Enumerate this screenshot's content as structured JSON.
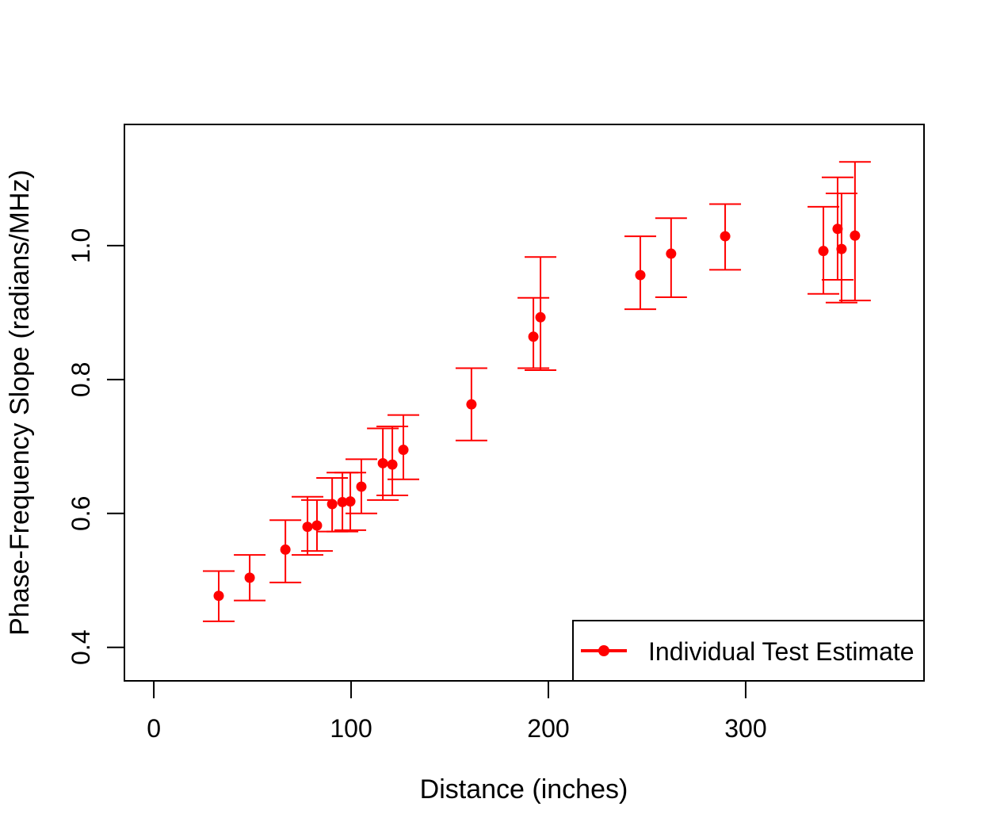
{
  "chart_data": {
    "type": "scatter",
    "title": "",
    "xlabel": "Distance (inches)",
    "ylabel": "Phase-Frequency Slope (radians/MHz)",
    "xlim": [
      -14.9,
      390.4
    ],
    "ylim": [
      0.35,
      1.181
    ],
    "xticks": [
      0,
      100,
      200,
      300
    ],
    "xtick_labels": [
      "0",
      "100",
      "200",
      "300"
    ],
    "yticks": [
      0.4,
      0.6,
      0.8,
      1.0
    ],
    "ytick_labels": [
      "0.4",
      "0.6",
      "0.8",
      "1.0"
    ],
    "grid": false,
    "legend": {
      "position": "bottom-right",
      "entries": [
        "Individual Test Estimate"
      ]
    },
    "color": "#ff0000",
    "series": [
      {
        "name": "Individual Test Estimate",
        "points": [
          {
            "x": 32.9,
            "y": 0.477,
            "upper": 0.514,
            "lower": 0.439
          },
          {
            "x": 48.6,
            "y": 0.504,
            "upper": 0.538,
            "lower": 0.47
          },
          {
            "x": 66.7,
            "y": 0.546,
            "upper": 0.59,
            "lower": 0.497
          },
          {
            "x": 77.9,
            "y": 0.58,
            "upper": 0.625,
            "lower": 0.538
          },
          {
            "x": 82.7,
            "y": 0.582,
            "upper": 0.62,
            "lower": 0.544
          },
          {
            "x": 90.4,
            "y": 0.614,
            "upper": 0.653,
            "lower": 0.573
          },
          {
            "x": 95.6,
            "y": 0.617,
            "upper": 0.661,
            "lower": 0.573
          },
          {
            "x": 99.6,
            "y": 0.618,
            "upper": 0.661,
            "lower": 0.575
          },
          {
            "x": 105.2,
            "y": 0.64,
            "upper": 0.681,
            "lower": 0.6
          },
          {
            "x": 116.1,
            "y": 0.675,
            "upper": 0.727,
            "lower": 0.62
          },
          {
            "x": 120.9,
            "y": 0.673,
            "upper": 0.73,
            "lower": 0.627
          },
          {
            "x": 126.5,
            "y": 0.695,
            "upper": 0.747,
            "lower": 0.651
          },
          {
            "x": 161.0,
            "y": 0.763,
            "upper": 0.817,
            "lower": 0.709
          },
          {
            "x": 192.4,
            "y": 0.864,
            "upper": 0.922,
            "lower": 0.817
          },
          {
            "x": 196.0,
            "y": 0.893,
            "upper": 0.983,
            "lower": 0.814
          },
          {
            "x": 246.6,
            "y": 0.956,
            "upper": 1.014,
            "lower": 0.905
          },
          {
            "x": 262.2,
            "y": 0.988,
            "upper": 1.041,
            "lower": 0.923
          },
          {
            "x": 289.6,
            "y": 1.014,
            "upper": 1.062,
            "lower": 0.964
          },
          {
            "x": 339.4,
            "y": 0.992,
            "upper": 1.058,
            "lower": 0.928
          },
          {
            "x": 346.6,
            "y": 1.025,
            "upper": 1.102,
            "lower": 0.949
          },
          {
            "x": 348.6,
            "y": 0.995,
            "upper": 1.078,
            "lower": 0.915
          },
          {
            "x": 355.4,
            "y": 1.015,
            "upper": 1.125,
            "lower": 0.918
          }
        ]
      }
    ]
  }
}
